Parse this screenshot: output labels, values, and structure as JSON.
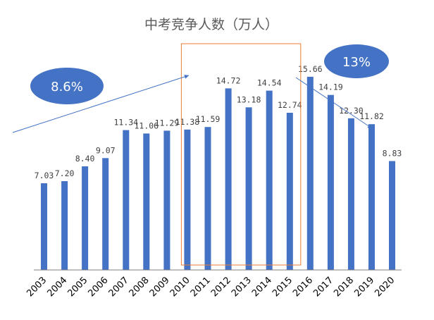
{
  "chart_data": {
    "type": "bar",
    "title": "中考竞争人数（万人）",
    "xlabel": "",
    "ylabel": "",
    "ylim": [
      0,
      18
    ],
    "grid": false,
    "legend": "none",
    "categories": [
      "2003",
      "2004",
      "2005",
      "2006",
      "2007",
      "2008",
      "2009",
      "2010",
      "2011",
      "2012",
      "2013",
      "2014",
      "2015",
      "2016",
      "2017",
      "2018",
      "2019",
      "2020"
    ],
    "values": [
      7.03,
      7.2,
      8.4,
      9.07,
      11.34,
      11.06,
      11.29,
      11.38,
      11.59,
      14.72,
      13.18,
      14.54,
      12.74,
      15.66,
      14.19,
      12.3,
      11.82,
      8.83
    ],
    "value_labels": [
      "7.03",
      "7.20",
      "8.40",
      "9.07",
      "11.34",
      "11.06",
      "11.29",
      "11.38",
      "11.59",
      "14.72",
      "13.18",
      "14.54",
      "12.74",
      "15.66",
      "14.19",
      "12.30",
      "11.82",
      "8.83"
    ],
    "colors": {
      "bar": "#4472C4",
      "bubble": "#4472C4",
      "highlight_box": "#ED7D31",
      "axis": "#7F7F7F"
    },
    "annotations": {
      "growth_bubble": "8.6%",
      "decline_bubble": "13%",
      "highlight_range": [
        "2010",
        "2015"
      ]
    }
  }
}
